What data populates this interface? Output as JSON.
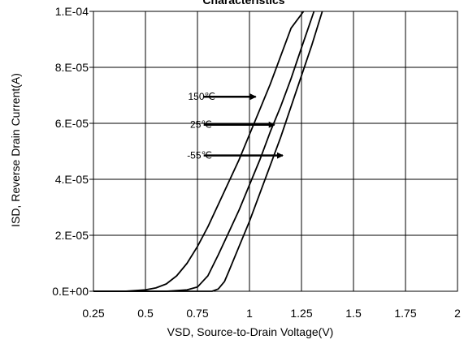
{
  "chart_data": {
    "type": "line",
    "title": "Characteristics",
    "xlabel": "VSD, Source-to-Drain Voltage(V)",
    "ylabel": "ISD, Reverse Drain Current(A)",
    "xlim": [
      0.25,
      2
    ],
    "ylim": [
      0,
      0.0001
    ],
    "x_ticks": [
      0.25,
      0.5,
      0.75,
      1,
      1.25,
      1.5,
      1.75,
      2
    ],
    "x_tick_labels": [
      "0.25",
      "0.5",
      "0.75",
      "1",
      "1.25",
      "1.5",
      "1.75",
      "2"
    ],
    "y_ticks": [
      0,
      2e-05,
      4e-05,
      6e-05,
      8e-05,
      0.0001
    ],
    "y_tick_labels": [
      "0.E+00",
      "2.E-05",
      "4.E-05",
      "6.E-05",
      "8.E-05",
      "1.E-04"
    ],
    "grid": true,
    "series": [
      {
        "name": "150℃",
        "x": [
          0.25,
          0.4,
          0.5,
          0.55,
          0.6,
          0.65,
          0.7,
          0.75,
          0.8,
          0.85,
          0.9,
          0.95,
          1.0,
          1.05,
          1.1,
          1.15,
          1.2,
          1.26
        ],
        "y": [
          0,
          0,
          5e-07,
          1.2e-06,
          2.6e-06,
          5.5e-06,
          1e-05,
          1.6e-05,
          2.3e-05,
          3.1e-05,
          3.9e-05,
          4.7e-05,
          5.6e-05,
          6.5e-05,
          7.4e-05,
          8.4e-05,
          9.4e-05,
          0.0001
        ]
      },
      {
        "name": "25℃",
        "x": [
          0.25,
          0.6,
          0.7,
          0.75,
          0.8,
          0.85,
          0.9,
          0.95,
          1.0,
          1.05,
          1.1,
          1.15,
          1.2,
          1.25,
          1.31
        ],
        "y": [
          0,
          0,
          5e-07,
          1.5e-06,
          5.5e-06,
          1.3e-05,
          2.1e-05,
          2.9e-05,
          3.8e-05,
          4.7e-05,
          5.7e-05,
          6.6e-05,
          7.6e-05,
          8.7e-05,
          0.0001
        ]
      },
      {
        "name": "-55℃",
        "x": [
          0.25,
          0.82,
          0.85,
          0.88,
          0.9,
          0.95,
          1.0,
          1.05,
          1.1,
          1.15,
          1.2,
          1.25,
          1.3,
          1.35
        ],
        "y": [
          0,
          0,
          8e-07,
          3.5e-06,
          7e-06,
          1.6e-05,
          2.5e-05,
          3.5e-05,
          4.5e-05,
          5.5e-05,
          6.6e-05,
          7.7e-05,
          8.8e-05,
          0.0001
        ]
      }
    ],
    "annotations": [
      {
        "label": "150℃",
        "label_x": 0.705,
        "y": 6.95e-05,
        "arrow_from_x": 0.78,
        "arrow_to_x": 1.03
      },
      {
        "label": "25℃",
        "label_x": 0.715,
        "y": 5.95e-05,
        "arrow_from_x": 0.78,
        "arrow_to_x": 1.12
      },
      {
        "label": "-55℃",
        "label_x": 0.7,
        "y": 4.85e-05,
        "arrow_from_x": 0.78,
        "arrow_to_x": 1.16
      }
    ]
  }
}
